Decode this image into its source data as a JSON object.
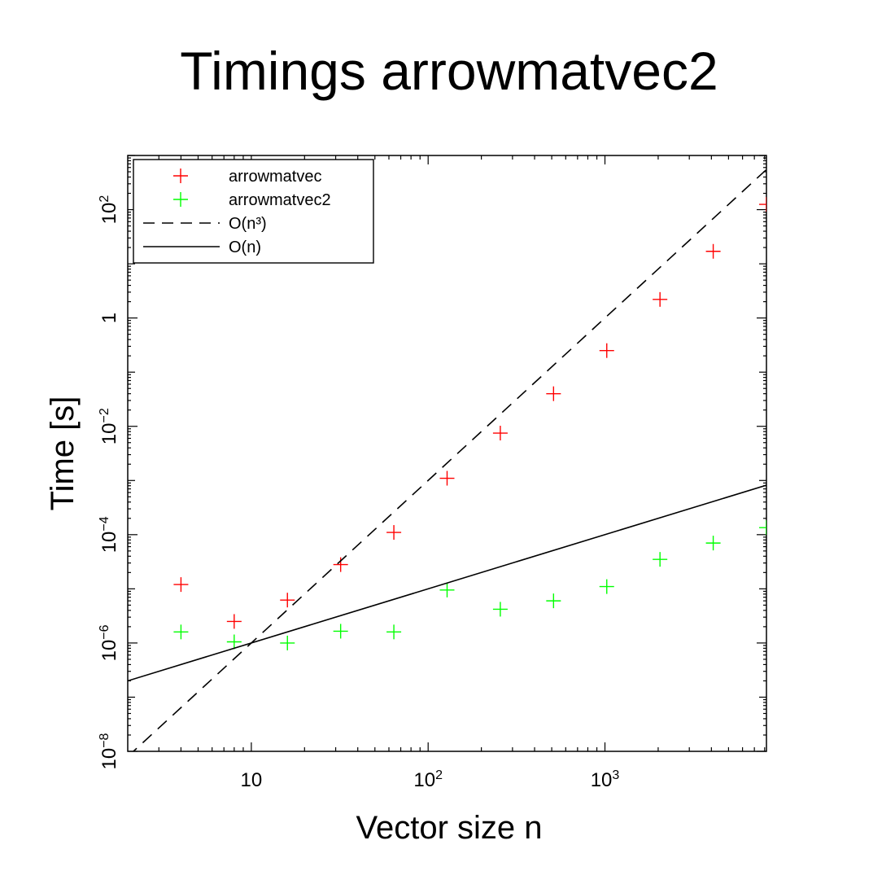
{
  "chart_data": {
    "type": "scatter",
    "title": "Timings arrowmatvec2",
    "xlabel": "Vector size n",
    "ylabel": "Time [s]",
    "x_scale": "log",
    "y_scale": "log",
    "xlim": [
      2,
      8192
    ],
    "ylim": [
      1e-08,
      1000
    ],
    "grid": false,
    "legend_position": "top-left",
    "x_tick_labels": [
      {
        "value": 10,
        "base": "10",
        "exp": ""
      },
      {
        "value": 100,
        "base": "10",
        "exp": "2"
      },
      {
        "value": 1000,
        "base": "10",
        "exp": "3"
      }
    ],
    "y_tick_labels": [
      {
        "value": 1e-08,
        "base": "10",
        "exp": "−8"
      },
      {
        "value": 1e-06,
        "base": "10",
        "exp": "−6"
      },
      {
        "value": 0.0001,
        "base": "10",
        "exp": "−4"
      },
      {
        "value": 0.01,
        "base": "10",
        "exp": "−2"
      },
      {
        "value": 1,
        "base": "1",
        "exp": ""
      },
      {
        "value": 100,
        "base": "10",
        "exp": "2"
      }
    ],
    "series": [
      {
        "name": "arrowmatvec",
        "kind": "scatter",
        "marker": "plus",
        "color": "#ff0000",
        "x": [
          4,
          8,
          16,
          32,
          64,
          128,
          256,
          512,
          1024,
          2048,
          4096,
          8192
        ],
        "y": [
          1.2e-05,
          2.5e-06,
          6.2e-06,
          2.8e-05,
          0.00011,
          0.0011,
          0.0075,
          0.04,
          0.25,
          2.2,
          17,
          125
        ]
      },
      {
        "name": "arrowmatvec2",
        "kind": "scatter",
        "marker": "plus",
        "color": "#00ff00",
        "x": [
          4,
          8,
          16,
          32,
          64,
          128,
          256,
          512,
          1024,
          2048,
          4096,
          8192
        ],
        "y": [
          1.6e-06,
          1.05e-06,
          1e-06,
          1.65e-06,
          1.6e-06,
          9.5e-06,
          4.2e-06,
          6e-06,
          1.1e-05,
          3.5e-05,
          7e-05,
          0.000135
        ]
      },
      {
        "name": "O(n³)",
        "kind": "line",
        "dash": "dashed",
        "color": "#000000",
        "x": [
          2,
          8192
        ],
        "y": [
          8e-09,
          550
        ]
      },
      {
        "name": "O(n)",
        "kind": "line",
        "dash": "solid",
        "color": "#000000",
        "x": [
          2,
          8192
        ],
        "y": [
          2e-07,
          0.00082
        ]
      }
    ]
  }
}
